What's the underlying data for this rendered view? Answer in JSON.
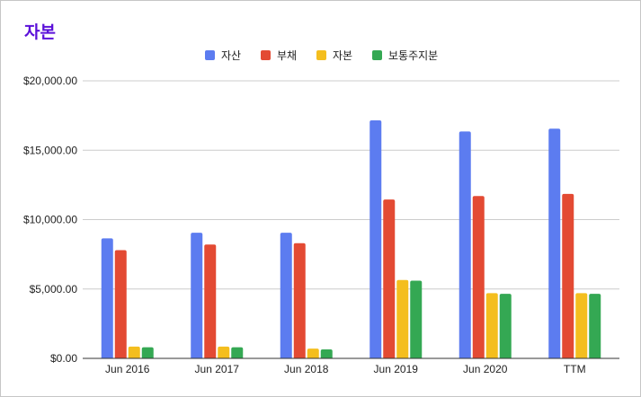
{
  "chart_data": {
    "type": "bar",
    "title": "자본",
    "xlabel": "",
    "ylabel": "",
    "categories": [
      "Jun 2016",
      "Jun 2017",
      "Jun 2018",
      "Jun 2019",
      "Jun 2020",
      "TTM"
    ],
    "series": [
      {
        "name": "자산",
        "color": "#5c7cf0",
        "values": [
          8650,
          9050,
          9050,
          17150,
          16350,
          16550
        ]
      },
      {
        "name": "부채",
        "color": "#e34a33",
        "values": [
          7800,
          8200,
          8300,
          11450,
          11700,
          11850
        ]
      },
      {
        "name": "자본",
        "color": "#f4be1e",
        "values": [
          850,
          850,
          700,
          5650,
          4700,
          4700
        ]
      },
      {
        "name": "보통주지분",
        "color": "#34a853",
        "values": [
          800,
          800,
          650,
          5600,
          4650,
          4650
        ]
      }
    ],
    "ylim": [
      0,
      20000
    ],
    "yticks": [
      "$0.00",
      "$5,000.00",
      "$10,000.00",
      "$15,000.00",
      "$20,000.00"
    ],
    "ytick_values": [
      0,
      5000,
      10000,
      15000,
      20000
    ],
    "legend_position": "top-center",
    "grid": true
  }
}
